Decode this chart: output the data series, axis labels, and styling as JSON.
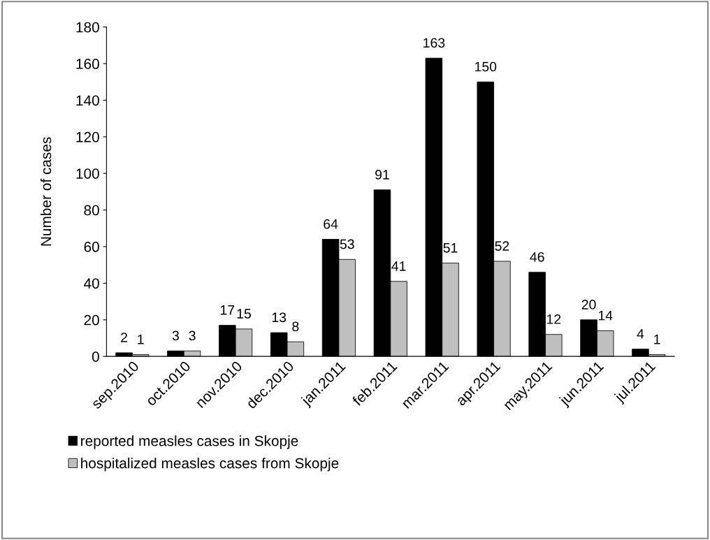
{
  "chart_data": {
    "type": "bar",
    "ylabel": "Number of cases",
    "categories": [
      "sep.2010",
      "oct.2010",
      "nov.2010",
      "dec.2010",
      "jan.2011",
      "feb.2011",
      "mar.2011",
      "apr.2011",
      "may.2011",
      "jun.2011",
      "jul.2011"
    ],
    "series": [
      {
        "name": "reported measles cases in Skopje",
        "color": "#000000",
        "values": [
          2,
          3,
          17,
          13,
          64,
          91,
          163,
          150,
          46,
          20,
          4
        ]
      },
      {
        "name": "hospitalized measles cases from Skopje",
        "color": "#bfbfbf",
        "values": [
          1,
          3,
          15,
          8,
          53,
          41,
          51,
          52,
          12,
          14,
          1
        ]
      }
    ],
    "ylim": [
      0,
      180
    ],
    "yticks": [
      0,
      20,
      40,
      60,
      80,
      100,
      120,
      140,
      160,
      180
    ],
    "data_labels": true,
    "legend": "bottom left",
    "grid": false
  }
}
